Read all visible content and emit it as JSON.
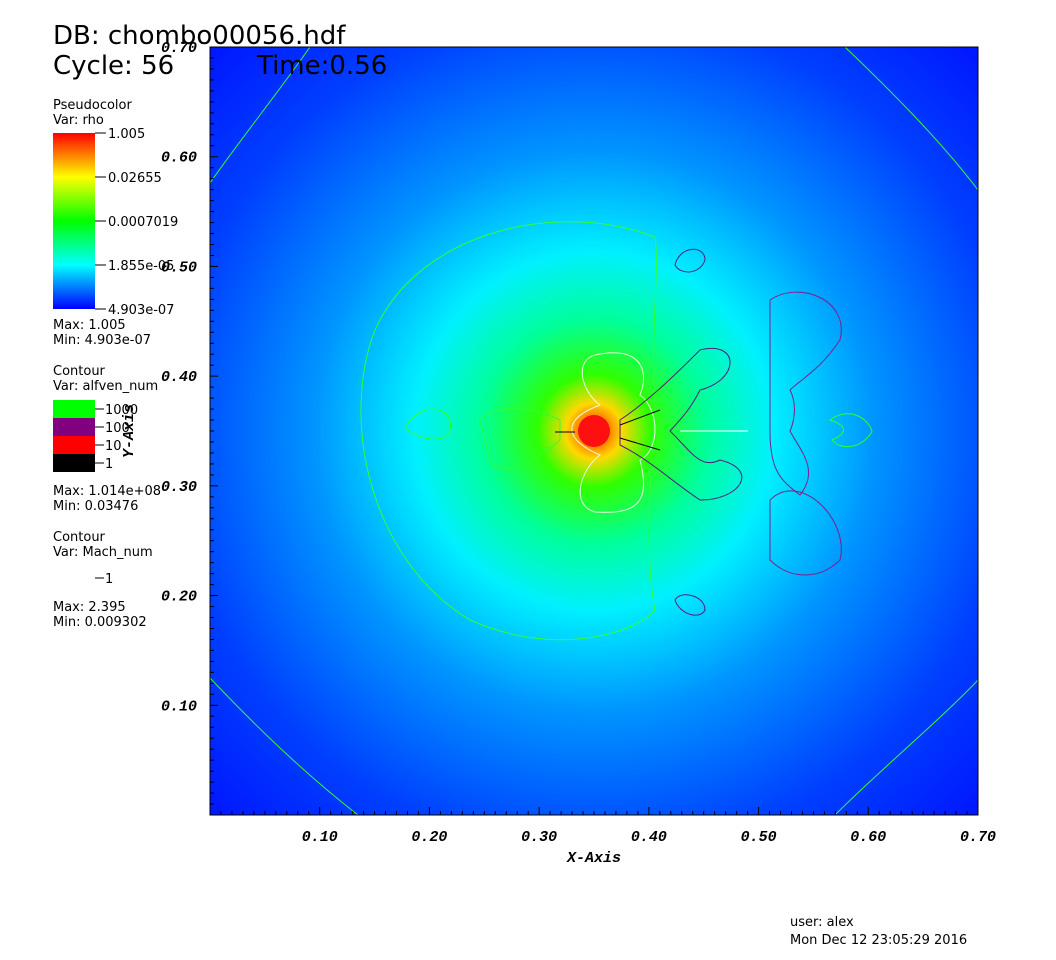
{
  "header": {
    "database": "DB: chombo00056.hdf",
    "cycle": "Cycle: 56",
    "time": "Time:0.56"
  },
  "legends": [
    {
      "plot": "Pseudocolor",
      "variable": "Var: rho",
      "labels": [
        "1.005",
        "0.02655",
        "0.0007019",
        "1.855e-05",
        "4.903e-07"
      ],
      "max": "Max:  1.005",
      "min": "Min:  4.903e-07"
    },
    {
      "plot": "Contour",
      "variable": "Var: alfven_num",
      "labels": [
        "1000",
        "100",
        "10",
        "1"
      ],
      "max": "Max:  1.014e+08",
      "min": "Min:  0.03476"
    },
    {
      "plot": "Contour",
      "variable": "Var: Mach_num",
      "labels": [
        "1"
      ],
      "max": "Max:  2.395",
      "min": "Min:  0.009302"
    }
  ],
  "axes": {
    "x_label": "X-Axis",
    "y_label": "Y-Axis",
    "x_ticks": [
      "0.10",
      "0.20",
      "0.30",
      "0.40",
      "0.50",
      "0.60",
      "0.70"
    ],
    "y_ticks": [
      "0.10",
      "0.20",
      "0.30",
      "0.40",
      "0.50",
      "0.60",
      "0.70"
    ]
  },
  "footer": {
    "user": "user: alex",
    "date": "Mon Dec 12 23:05:29 2016"
  }
}
